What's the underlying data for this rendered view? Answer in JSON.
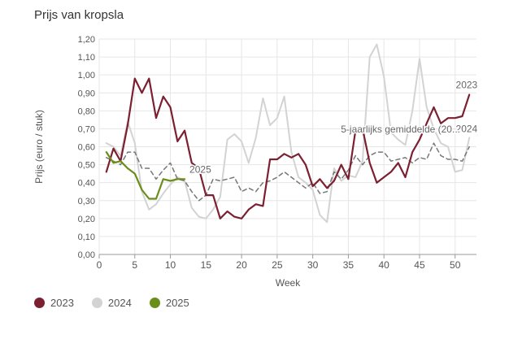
{
  "chart_data": {
    "type": "line",
    "title": "Prijs van kropsla",
    "xlabel": "Week",
    "ylabel": "Prijs (euro / stuk)",
    "xlim": [
      0,
      53
    ],
    "ylim": [
      0,
      1.2
    ],
    "xticks": [
      0,
      5,
      10,
      15,
      20,
      25,
      30,
      35,
      40,
      45,
      50
    ],
    "xtick_labels": [
      "0",
      "5",
      "10",
      "15",
      "20",
      "25",
      "30",
      "35",
      "40",
      "45",
      "50"
    ],
    "yticks": [
      0,
      0.1,
      0.2,
      0.3,
      0.4,
      0.5,
      0.6,
      0.7,
      0.8,
      0.9,
      1.0,
      1.1,
      1.2
    ],
    "ytick_labels": [
      "0,00",
      "0,10",
      "0,20",
      "0,30",
      "0,40",
      "0,50",
      "0,60",
      "0,70",
      "0,80",
      "0,90",
      "1,00",
      "1,10",
      "1,20"
    ],
    "grid": true,
    "legend_position": "bottom-left",
    "series": [
      {
        "name": "2024",
        "color": "#d3d3d3",
        "dash": false,
        "label": "2024",
        "x": [
          1,
          2,
          3,
          4,
          5,
          6,
          7,
          8,
          9,
          10,
          11,
          12,
          13,
          14,
          15,
          16,
          17,
          18,
          19,
          20,
          21,
          22,
          23,
          24,
          25,
          26,
          27,
          28,
          29,
          30,
          31,
          32,
          33,
          34,
          35,
          36,
          37,
          38,
          39,
          40,
          41,
          42,
          43,
          44,
          45,
          46,
          47,
          48,
          49,
          50,
          51,
          52
        ],
        "values": [
          0.62,
          0.6,
          0.55,
          0.74,
          0.62,
          0.35,
          0.25,
          0.28,
          0.34,
          0.39,
          0.43,
          0.41,
          0.26,
          0.21,
          0.2,
          0.25,
          0.32,
          0.64,
          0.67,
          0.63,
          0.51,
          0.65,
          0.87,
          0.72,
          0.76,
          0.88,
          0.57,
          0.43,
          0.4,
          0.36,
          0.22,
          0.18,
          0.48,
          0.41,
          0.44,
          0.43,
          0.52,
          1.1,
          1.17,
          0.99,
          0.68,
          0.64,
          0.61,
          0.8,
          1.09,
          0.82,
          0.7,
          0.62,
          0.6,
          0.46,
          0.47,
          0.65
        ]
      },
      {
        "name": "5-jaarlijks gemiddelde (2019-2023)",
        "color": "#777777",
        "dash": true,
        "label": "5-jaarlijks gemiddelde (20...",
        "x": [
          1,
          2,
          3,
          4,
          5,
          6,
          7,
          8,
          9,
          10,
          11,
          12,
          13,
          14,
          15,
          16,
          17,
          18,
          19,
          20,
          21,
          22,
          23,
          24,
          25,
          26,
          27,
          28,
          29,
          30,
          31,
          32,
          33,
          34,
          35,
          36,
          37,
          38,
          39,
          40,
          41,
          42,
          43,
          44,
          45,
          46,
          47,
          48,
          49,
          50,
          51,
          52
        ],
        "values": [
          0.54,
          0.52,
          0.5,
          0.57,
          0.57,
          0.48,
          0.48,
          0.42,
          0.47,
          0.51,
          0.42,
          0.41,
          0.35,
          0.3,
          0.33,
          0.42,
          0.41,
          0.42,
          0.43,
          0.35,
          0.37,
          0.35,
          0.4,
          0.41,
          0.43,
          0.46,
          0.43,
          0.4,
          0.37,
          0.4,
          0.34,
          0.35,
          0.46,
          0.42,
          0.47,
          0.55,
          0.5,
          0.55,
          0.57,
          0.57,
          0.52,
          0.53,
          0.54,
          0.51,
          0.54,
          0.53,
          0.62,
          0.55,
          0.53,
          0.53,
          0.52,
          0.6
        ]
      },
      {
        "name": "2023",
        "color": "#7b2031",
        "dash": false,
        "label": "2023",
        "x": [
          1,
          2,
          3,
          4,
          5,
          6,
          7,
          8,
          9,
          10,
          11,
          12,
          13,
          14,
          15,
          16,
          17,
          18,
          19,
          20,
          21,
          22,
          23,
          24,
          25,
          26,
          27,
          28,
          29,
          30,
          31,
          32,
          33,
          34,
          35,
          36,
          37,
          38,
          39,
          40,
          41,
          42,
          43,
          44,
          45,
          46,
          47,
          48,
          49,
          50,
          51,
          52
        ],
        "values": [
          0.46,
          0.59,
          0.52,
          0.72,
          0.98,
          0.9,
          0.98,
          0.76,
          0.88,
          0.82,
          0.63,
          0.69,
          0.51,
          0.48,
          0.33,
          0.33,
          0.2,
          0.24,
          0.21,
          0.2,
          0.25,
          0.28,
          0.27,
          0.53,
          0.53,
          0.56,
          0.54,
          0.56,
          0.5,
          0.38,
          0.42,
          0.37,
          0.41,
          0.5,
          0.42,
          0.69,
          0.7,
          0.51,
          0.4,
          0.43,
          0.46,
          0.51,
          0.43,
          0.57,
          0.64,
          0.73,
          0.82,
          0.73,
          0.76,
          0.76,
          0.77,
          0.89
        ]
      },
      {
        "name": "2025",
        "color": "#6b8e1a",
        "dash": false,
        "label": "2025",
        "x": [
          1,
          2,
          3,
          4,
          5,
          6,
          7,
          8,
          9,
          10,
          11,
          12
        ],
        "values": [
          0.57,
          0.51,
          0.52,
          0.48,
          0.45,
          0.36,
          0.31,
          0.31,
          0.42,
          0.41,
          0.42,
          0.42
        ]
      }
    ]
  },
  "legend": [
    {
      "label": "2023",
      "color": "#7b2031"
    },
    {
      "label": "2024",
      "color": "#d3d3d3"
    },
    {
      "label": "2025",
      "color": "#6b8e1a"
    }
  ]
}
